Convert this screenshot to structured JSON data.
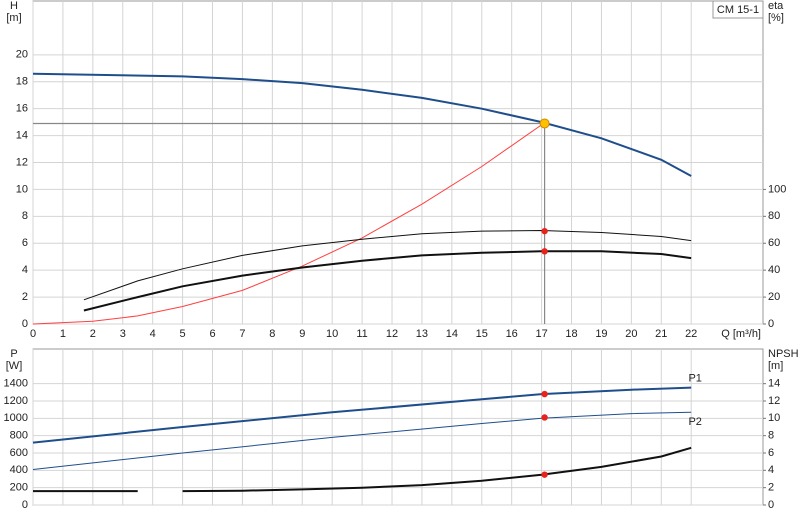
{
  "chart_data": [
    {
      "type": "line",
      "ylabel": "H",
      "yunit": "[m]",
      "y2label": "eta",
      "y2unit": "[%]",
      "xlabel": "Q [m³/h]",
      "annotation": "CM 15-1",
      "xlim": [
        0,
        24.4
      ],
      "xticks": [
        0,
        1,
        2,
        3,
        4,
        5,
        6,
        7,
        8,
        9,
        10,
        11,
        12,
        13,
        14,
        15,
        16,
        17,
        18,
        19,
        20,
        21,
        22
      ],
      "ylim": [
        0,
        24
      ],
      "yticks": [
        0,
        2,
        4,
        6,
        8,
        10,
        12,
        14,
        16,
        18,
        20
      ],
      "y2lim": [
        0,
        240
      ],
      "y2ticks": [
        0,
        20,
        40,
        60,
        80,
        100
      ],
      "grid": true,
      "series": [
        {
          "color": "#1f4e8c",
          "line_width": 2,
          "x": [
            0,
            5,
            7,
            9,
            11,
            13,
            15,
            17,
            19,
            21,
            22
          ],
          "values": [
            18.6,
            18.4,
            18.2,
            17.9,
            17.4,
            16.8,
            16.0,
            15.0,
            13.8,
            12.2,
            11.0
          ]
        },
        {
          "color": "#ff4040",
          "line_width": 1,
          "x": [
            0,
            2,
            3.5,
            5,
            7,
            9,
            11,
            13,
            15,
            17
          ],
          "values": [
            0,
            0.2,
            0.6,
            1.3,
            2.5,
            4.3,
            6.4,
            8.9,
            11.7,
            14.8
          ]
        },
        {
          "color": "#111111",
          "line_width": 1,
          "axis": "y2",
          "x": [
            1.7,
            3.5,
            5,
            7,
            9,
            11,
            13,
            15,
            17,
            19,
            21,
            22
          ],
          "values": [
            18,
            32,
            41,
            51,
            58,
            63,
            67,
            69,
            69.5,
            68,
            65,
            62
          ]
        },
        {
          "color": "#111111",
          "line_width": 2,
          "axis": "y2",
          "x": [
            1.7,
            3.5,
            5,
            7,
            9,
            11,
            13,
            15,
            17,
            19,
            21,
            22
          ],
          "values": [
            10,
            20,
            28,
            36,
            42,
            47,
            51,
            53,
            54,
            54,
            52,
            49
          ]
        }
      ],
      "points": [
        {
          "x": 17.1,
          "y": 69,
          "axis": "y2",
          "color": "#e8231c"
        },
        {
          "x": 17.1,
          "y": 54,
          "axis": "y2",
          "color": "#e8231c"
        }
      ],
      "duty_point": {
        "x": 17.1,
        "y": 14.9,
        "color": "#ffc000"
      }
    },
    {
      "type": "line",
      "ylabel": "P",
      "yunit": "[W]",
      "y2label": "NPSH",
      "y2unit": "[m]",
      "xlim": [
        0,
        24.4
      ],
      "xgrid": [
        0,
        1,
        2,
        3,
        4,
        5,
        6,
        7,
        8,
        9,
        10,
        11,
        12,
        13,
        14,
        15,
        16,
        17,
        18,
        19,
        20,
        21,
        22
      ],
      "ylim": [
        0,
        1800
      ],
      "yticks": [
        0,
        200,
        400,
        600,
        800,
        1000,
        1200,
        1400
      ],
      "y2lim": [
        0,
        18
      ],
      "y2ticks": [
        0,
        2,
        4,
        6,
        8,
        10,
        12,
        14
      ],
      "grid": true,
      "series": [
        {
          "name": "P1",
          "color": "#1f4e8c",
          "line_width": 2,
          "x": [
            0,
            5,
            10,
            15,
            17,
            20,
            22
          ],
          "values": [
            720,
            900,
            1070,
            1220,
            1280,
            1330,
            1355
          ]
        },
        {
          "name": "P2",
          "color": "#1f4e8c",
          "line_width": 1,
          "x": [
            0,
            5,
            10,
            15,
            17,
            20,
            22
          ],
          "values": [
            410,
            600,
            780,
            940,
            1000,
            1055,
            1070
          ]
        },
        {
          "color": "#111111",
          "line_width": 2,
          "axis": "y2",
          "x": [
            0,
            3.5,
            4,
            5,
            7,
            9,
            11,
            13,
            15,
            17,
            19,
            21,
            22
          ],
          "values": [
            1.6,
            1.6,
            null,
            1.6,
            1.65,
            1.8,
            2.0,
            2.3,
            2.8,
            3.5,
            4.4,
            5.6,
            6.6
          ]
        }
      ],
      "points": [
        {
          "x": 17.1,
          "y": 1280,
          "color": "#e8231c"
        },
        {
          "x": 17.1,
          "y": 1010,
          "color": "#e8231c"
        },
        {
          "x": 17.1,
          "y": 3.5,
          "axis": "y2",
          "color": "#e8231c"
        }
      ]
    }
  ]
}
